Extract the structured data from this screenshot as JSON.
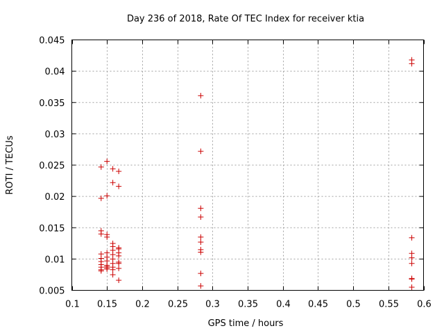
{
  "chart_data": {
    "type": "scatter",
    "title": "Day 236 of 2018, Rate Of TEC Index for receiver ktia",
    "xlabel": "GPS time / hours",
    "ylabel": "ROTI / TECUs",
    "xlim": [
      0.1,
      0.6
    ],
    "ylim": [
      0.005,
      0.045
    ],
    "xticks": [
      0.1,
      0.15,
      0.2,
      0.25,
      0.3,
      0.35,
      0.4,
      0.45,
      0.5,
      0.55,
      0.6
    ],
    "xtick_labels": [
      "0.1",
      "0.15",
      "0.2",
      "0.25",
      "0.3",
      "0.35",
      "0.4",
      "0.45",
      "0.5",
      "0.55",
      "0.6"
    ],
    "yticks": [
      0.005,
      0.01,
      0.015,
      0.02,
      0.025,
      0.03,
      0.035,
      0.04,
      0.045
    ],
    "ytick_labels": [
      "0.005",
      "0.01",
      "0.015",
      "0.02",
      "0.025",
      "0.03",
      "0.035",
      "0.04",
      "0.045"
    ],
    "grid": true,
    "marker": "+",
    "color": "#cc0000",
    "series": [
      {
        "name": "ROTI",
        "points": [
          [
            0.1417,
            0.0247
          ],
          [
            0.1417,
            0.0197
          ],
          [
            0.1417,
            0.0145
          ],
          [
            0.1417,
            0.014
          ],
          [
            0.1417,
            0.0108
          ],
          [
            0.1417,
            0.0101
          ],
          [
            0.1417,
            0.0096
          ],
          [
            0.1417,
            0.0091
          ],
          [
            0.1417,
            0.0087
          ],
          [
            0.1417,
            0.0083
          ],
          [
            0.1417,
            0.0081
          ],
          [
            0.15,
            0.0256
          ],
          [
            0.15,
            0.0201
          ],
          [
            0.15,
            0.0139
          ],
          [
            0.15,
            0.0135
          ],
          [
            0.15,
            0.011
          ],
          [
            0.15,
            0.0103
          ],
          [
            0.15,
            0.0097
          ],
          [
            0.15,
            0.009
          ],
          [
            0.15,
            0.0088
          ],
          [
            0.15,
            0.0086
          ],
          [
            0.15,
            0.0084
          ],
          [
            0.1583,
            0.0244
          ],
          [
            0.1583,
            0.0222
          ],
          [
            0.1583,
            0.0125
          ],
          [
            0.1583,
            0.012
          ],
          [
            0.1583,
            0.0114
          ],
          [
            0.1583,
            0.0107
          ],
          [
            0.1583,
            0.01
          ],
          [
            0.1583,
            0.0093
          ],
          [
            0.1583,
            0.0087
          ],
          [
            0.1583,
            0.0083
          ],
          [
            0.1583,
            0.0075
          ],
          [
            0.1667,
            0.024
          ],
          [
            0.1667,
            0.0216
          ],
          [
            0.1667,
            0.0118
          ],
          [
            0.1667,
            0.0116
          ],
          [
            0.1667,
            0.011
          ],
          [
            0.1667,
            0.0105
          ],
          [
            0.1667,
            0.0095
          ],
          [
            0.1667,
            0.0093
          ],
          [
            0.1667,
            0.0085
          ],
          [
            0.1667,
            0.0066
          ],
          [
            0.2833,
            0.0361
          ],
          [
            0.2833,
            0.0272
          ],
          [
            0.2833,
            0.0181
          ],
          [
            0.2833,
            0.0167
          ],
          [
            0.2833,
            0.0135
          ],
          [
            0.2833,
            0.0127
          ],
          [
            0.2833,
            0.0115
          ],
          [
            0.2833,
            0.0111
          ],
          [
            0.2833,
            0.0077
          ],
          [
            0.2833,
            0.0057
          ],
          [
            0.5833,
            0.0418
          ],
          [
            0.5833,
            0.0412
          ],
          [
            0.5833,
            0.0134
          ],
          [
            0.5833,
            0.0109
          ],
          [
            0.5833,
            0.0102
          ],
          [
            0.5833,
            0.0093
          ],
          [
            0.5833,
            0.0069
          ],
          [
            0.5833,
            0.0068
          ],
          [
            0.5833,
            0.0055
          ]
        ]
      }
    ]
  }
}
